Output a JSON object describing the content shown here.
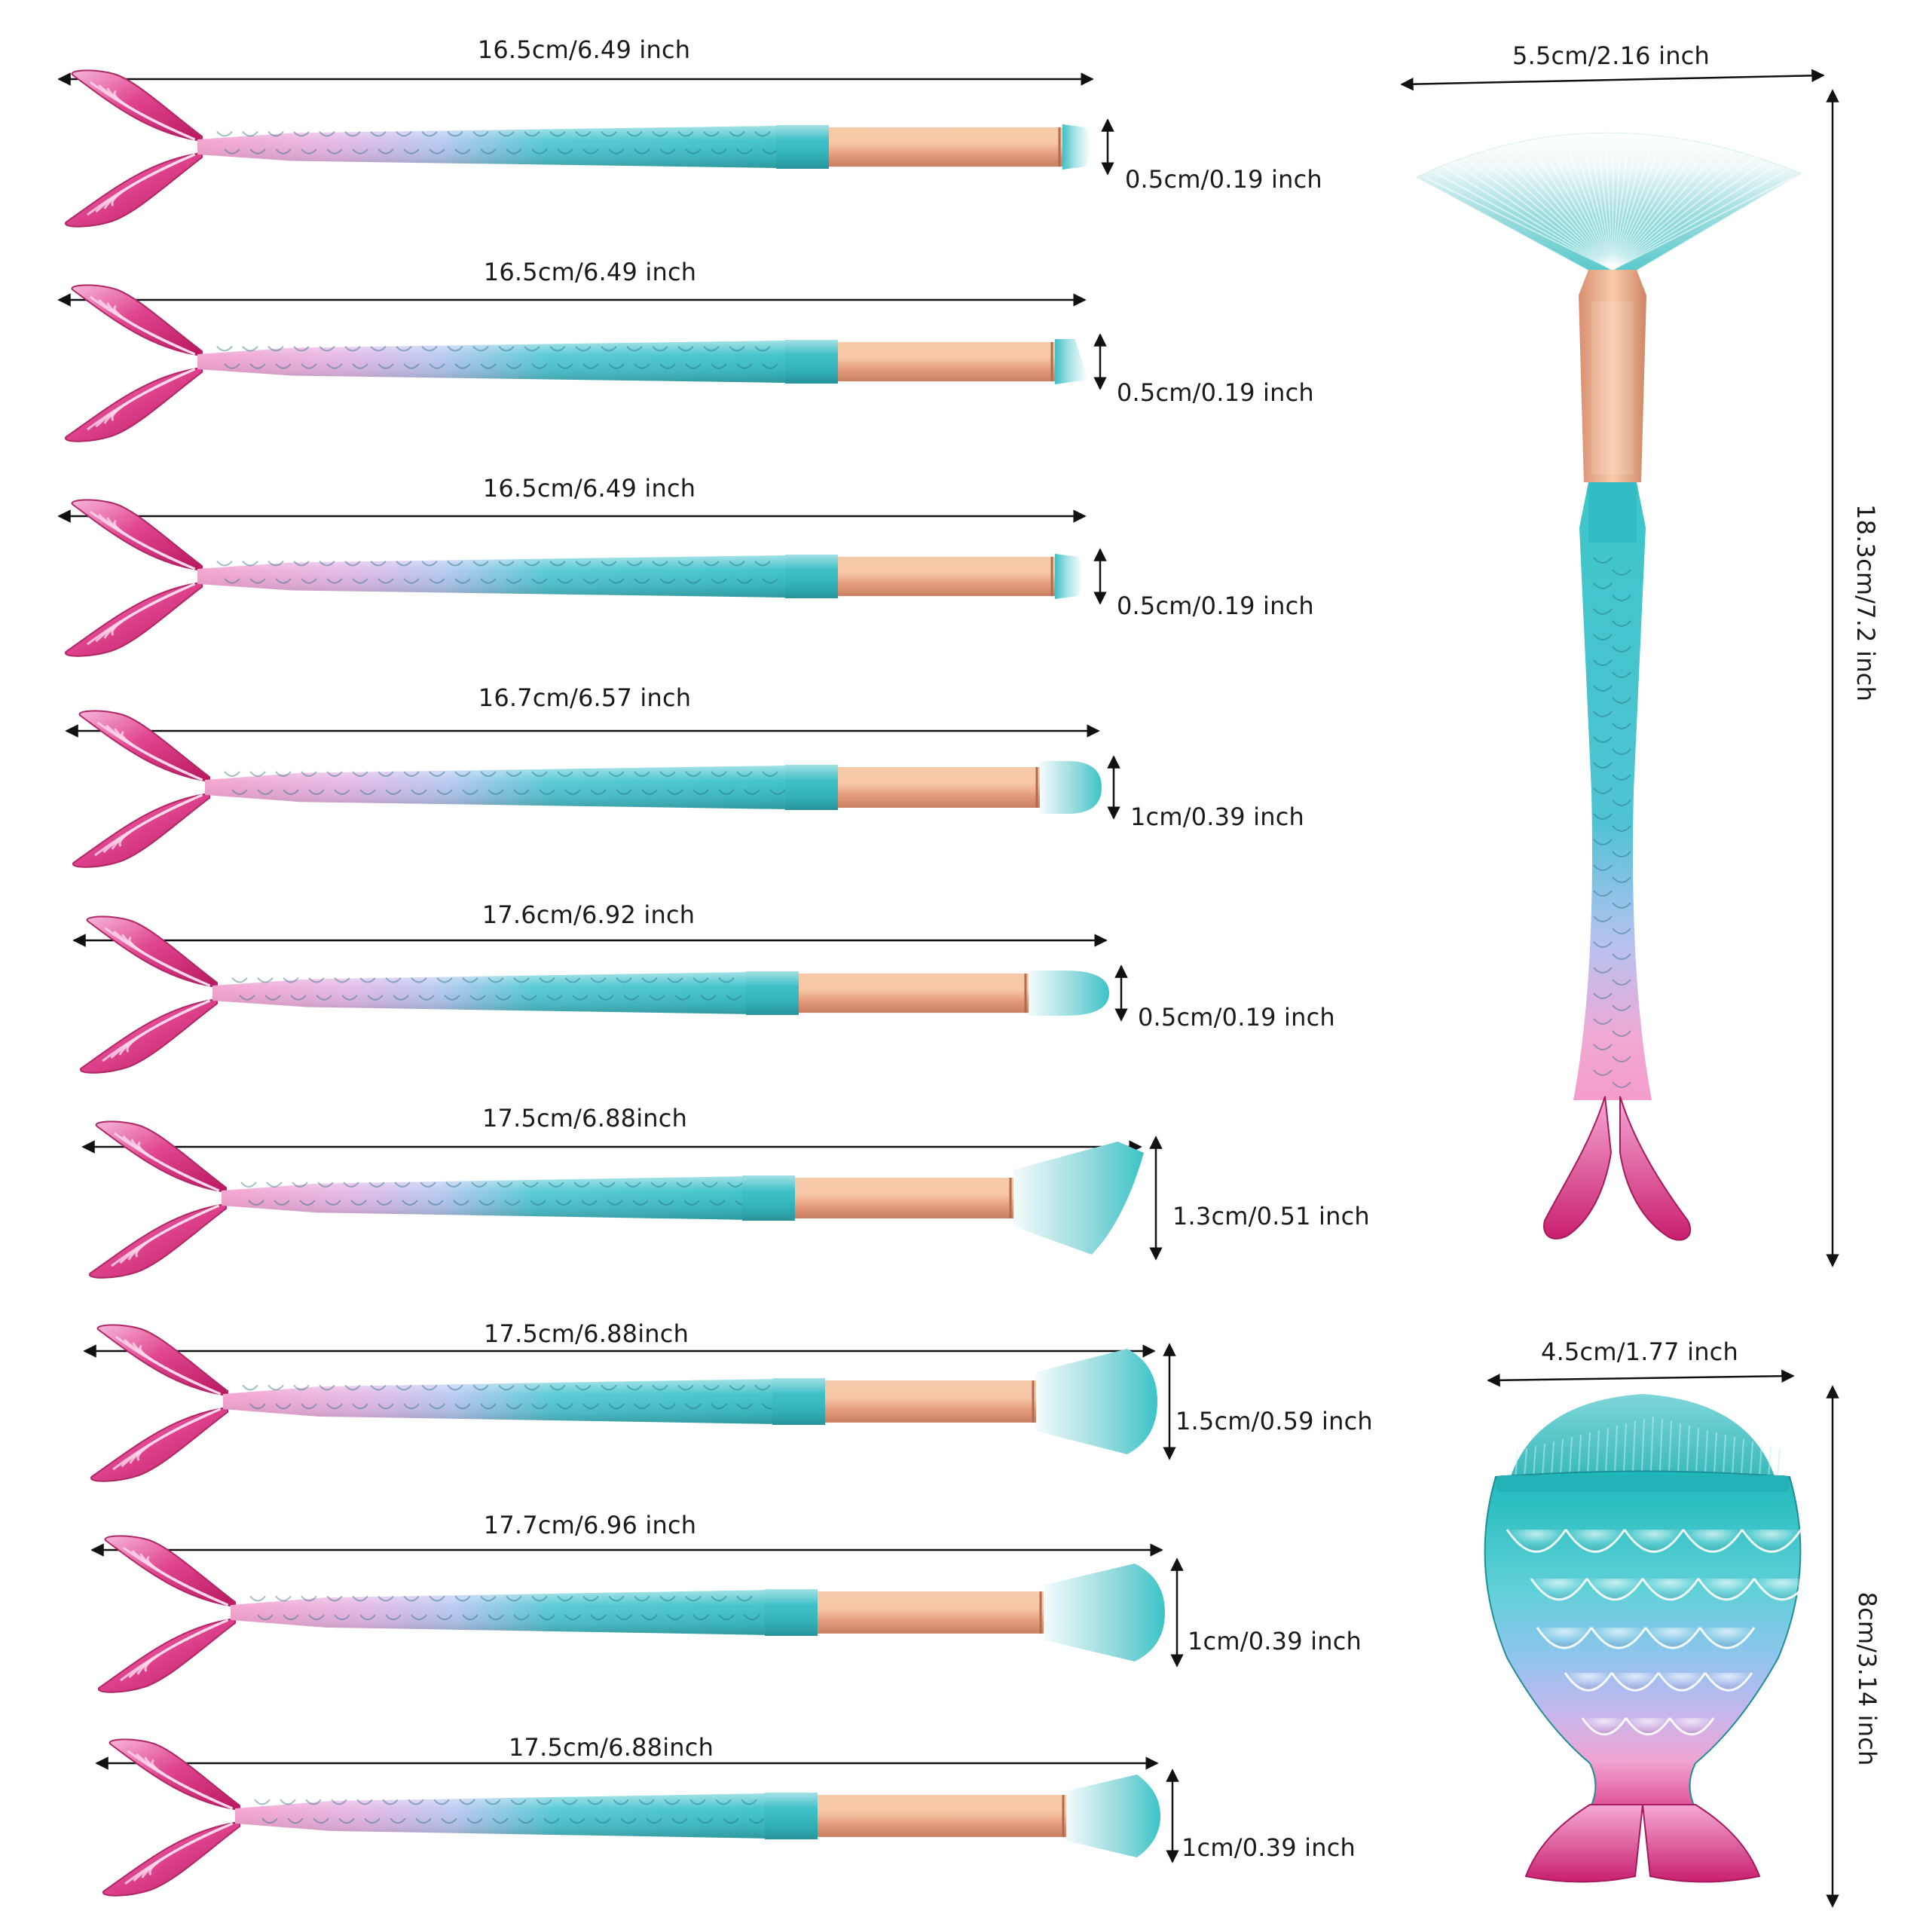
{
  "brushes": [
    {
      "length": "16.5cm/6.49 inch",
      "head": "0.5cm/0.19 inch",
      "head_style": "pencil"
    },
    {
      "length": "16.5cm/6.49 inch",
      "head": "0.5cm/0.19 inch",
      "head_style": "angled"
    },
    {
      "length": "16.5cm/6.49 inch",
      "head": "0.5cm/0.19 inch",
      "head_style": "pencil"
    },
    {
      "length": "16.7cm/6.57 inch",
      "head": "1cm/0.39 inch",
      "head_style": "round"
    },
    {
      "length": "17.6cm/6.92 inch",
      "head": "0.5cm/0.19 inch",
      "head_style": "round"
    },
    {
      "length": "17.5cm/6.88inch",
      "head": "1.3cm/0.51 inch",
      "head_style": "angled-large"
    },
    {
      "length": "17.5cm/6.88inch",
      "head": "1.5cm/0.59 inch",
      "head_style": "flat-large"
    },
    {
      "length": "17.7cm/6.96 inch",
      "head": "1cm/0.39 inch",
      "head_style": "flat-large"
    },
    {
      "length": "17.5cm/6.88inch",
      "head": "1cm/0.39 inch",
      "head_style": "flat"
    }
  ],
  "fan_brush": {
    "width": "5.5cm/2.16 inch",
    "height": "18.3cm/7.2 inch"
  },
  "fish_brush": {
    "width": "4.5cm/1.77 inch",
    "height": "8cm/3.14 inch"
  },
  "colors": {
    "teal": "#3cc6c8",
    "teal_dark": "#1e9ea6",
    "pink": "#e0458f",
    "pink_light": "#f2a6cf",
    "lavender": "#c9b8e8",
    "rose_gold": "#f0b394",
    "bristle_white": "#f6fbfb",
    "bristle_tip": "#47c4c8",
    "line": "#111111"
  }
}
